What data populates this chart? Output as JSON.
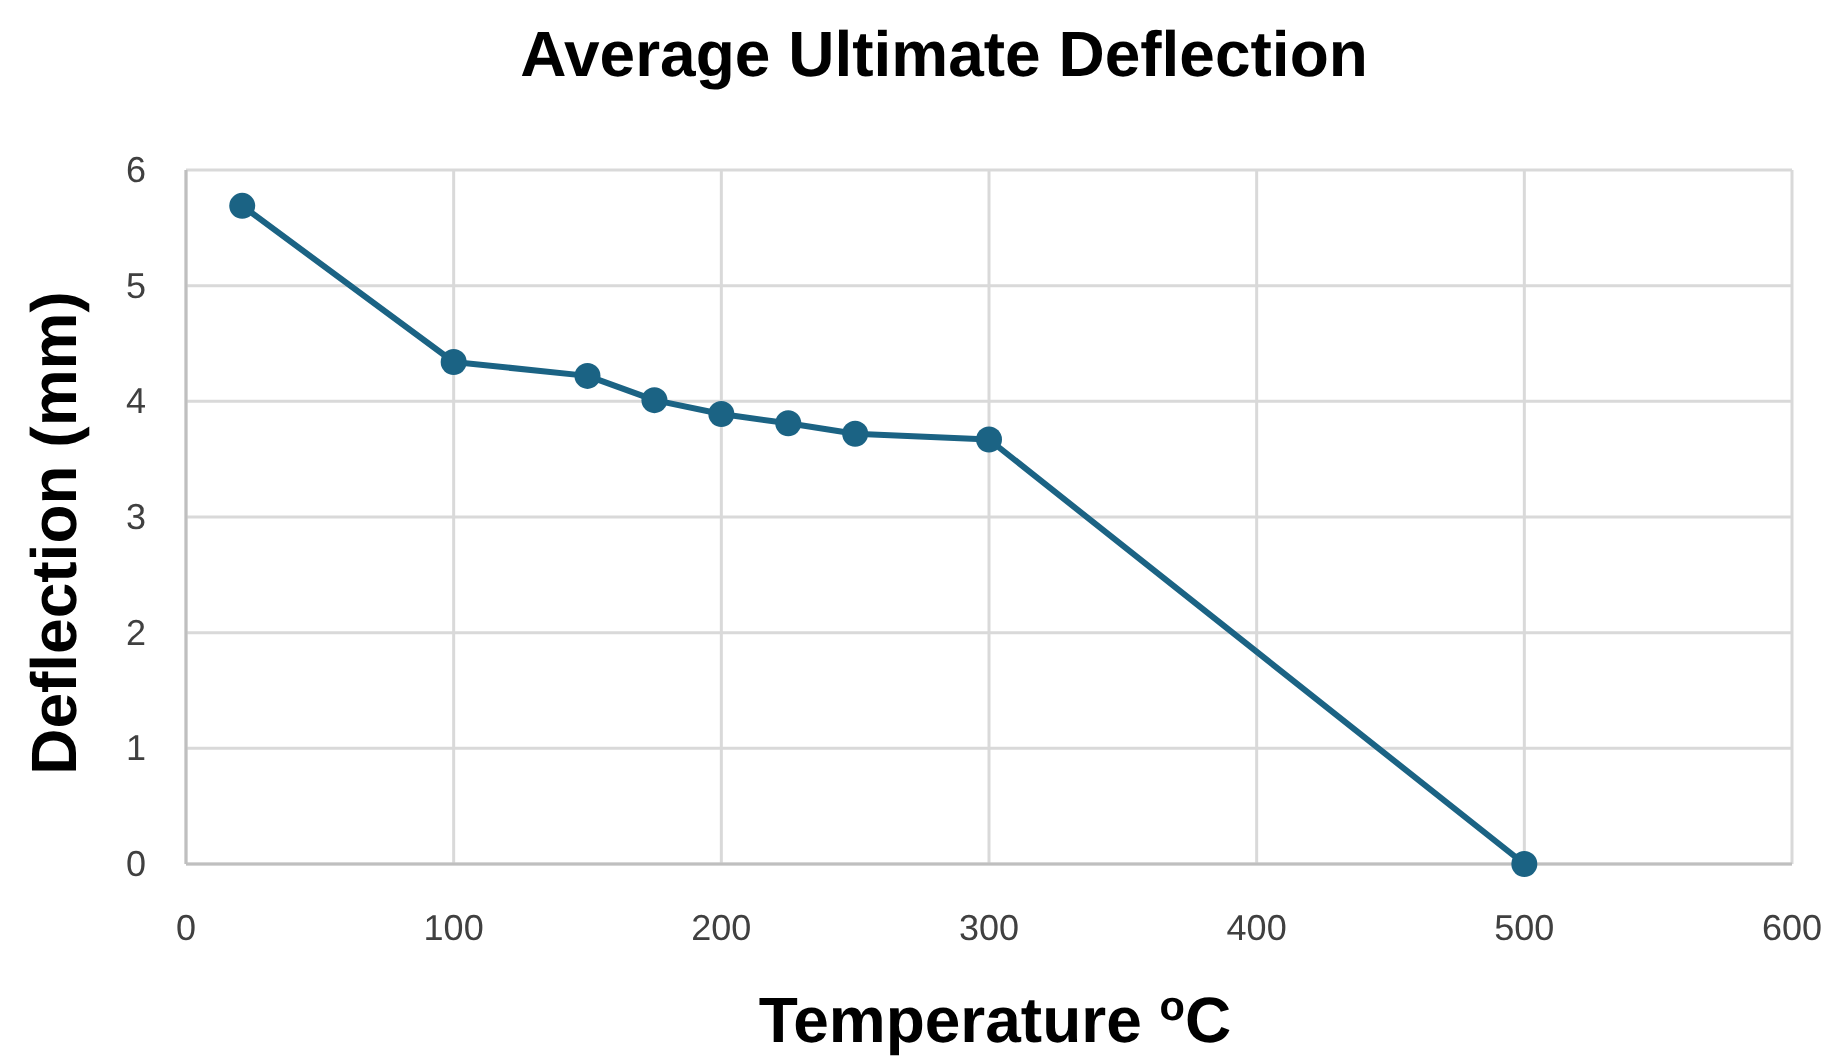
{
  "chart_data": {
    "type": "line",
    "title": "Average Ultimate Deflection",
    "xlabel": "Temperature $^{o}$C",
    "ylabel": "Deflection (mm)",
    "x": [
      21,
      100,
      150,
      175,
      200,
      225,
      250,
      300,
      500
    ],
    "series": [
      {
        "color": "#1b6384",
        "values": [
          5.69,
          4.34,
          4.22,
          4.01,
          3.89,
          3.81,
          3.72,
          3.67,
          0
        ]
      }
    ],
    "xlim": [
      0,
      600
    ],
    "xticks": [
      0,
      100,
      200,
      300,
      400,
      500,
      600
    ],
    "ylim": [
      0,
      6
    ],
    "yticks": [
      0,
      1,
      2,
      3,
      4,
      5,
      6
    ],
    "grid": true,
    "marker": "circle",
    "line_style": "solid"
  }
}
